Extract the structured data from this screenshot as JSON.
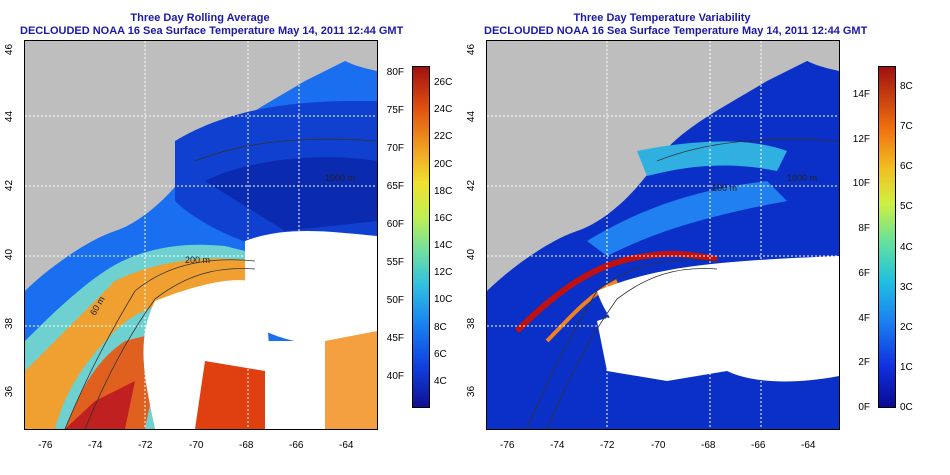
{
  "panels": {
    "left": {
      "title_line1": "Three Day Rolling Average",
      "title_line2": "DECLOUDED NOAA 16 Sea Surface Temperature May 14, 2011 12:44 GMT",
      "colorbar_f": [
        "40F",
        "45F",
        "50F",
        "55F",
        "60F",
        "65F",
        "70F",
        "75F",
        "80F"
      ],
      "colorbar_c": [
        "4C",
        "6C",
        "8C",
        "10C",
        "12C",
        "14C",
        "16C",
        "18C",
        "20C",
        "22C",
        "24C",
        "26C"
      ],
      "contour_labels": [
        "60 m",
        "200 m",
        "1000 m"
      ]
    },
    "right": {
      "title_line1": "Three Day Temperature Variability",
      "title_line2": "DECLOUDED NOAA 16 Sea Surface Temperature May 14, 2011 12:44 GMT",
      "colorbar_f": [
        "0F",
        "2F",
        "4F",
        "6F",
        "8F",
        "10F",
        "12F",
        "14F"
      ],
      "colorbar_c": [
        "0C",
        "1C",
        "2C",
        "3C",
        "4C",
        "5C",
        "6C",
        "7C",
        "8C"
      ],
      "contour_labels": [
        "200 m",
        "1000 m"
      ]
    }
  },
  "axes": {
    "x_ticks": [
      "-76",
      "-74",
      "-72",
      "-70",
      "-68",
      "-66",
      "-64"
    ],
    "y_ticks": [
      "36",
      "38",
      "40",
      "42",
      "44",
      "46"
    ]
  },
  "colors": {
    "title": "#1a1aa6",
    "land": "#bebebe",
    "cloud": "#ffffff"
  }
}
